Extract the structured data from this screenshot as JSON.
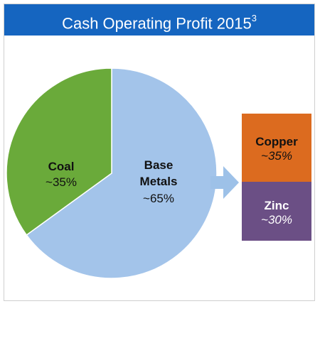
{
  "header": {
    "title": "Cash Operating Profit 2015",
    "footnote": "3"
  },
  "colors": {
    "header_bg": "#1565c0",
    "coal": "#6aaa3a",
    "base_metals": "#a3c4ea",
    "arrow": "#9dc1e8",
    "copper": "#dc6b1f",
    "zinc": "#6b4f85"
  },
  "chart_data": {
    "type": "pie",
    "title": "Cash Operating Profit 2015",
    "slices": [
      {
        "name": "Coal",
        "label_line1": "Coal",
        "label_line2": "",
        "pct_label": "~35%",
        "value": 35
      },
      {
        "name": "Base Metals",
        "label_line1": "Base",
        "label_line2": "Metals",
        "pct_label": "~65%",
        "value": 65
      }
    ],
    "breakdown": [
      {
        "name": "Copper",
        "pct_label": "~35%",
        "value": 35
      },
      {
        "name": "Zinc",
        "pct_label": "~30%",
        "value": 30
      }
    ]
  }
}
